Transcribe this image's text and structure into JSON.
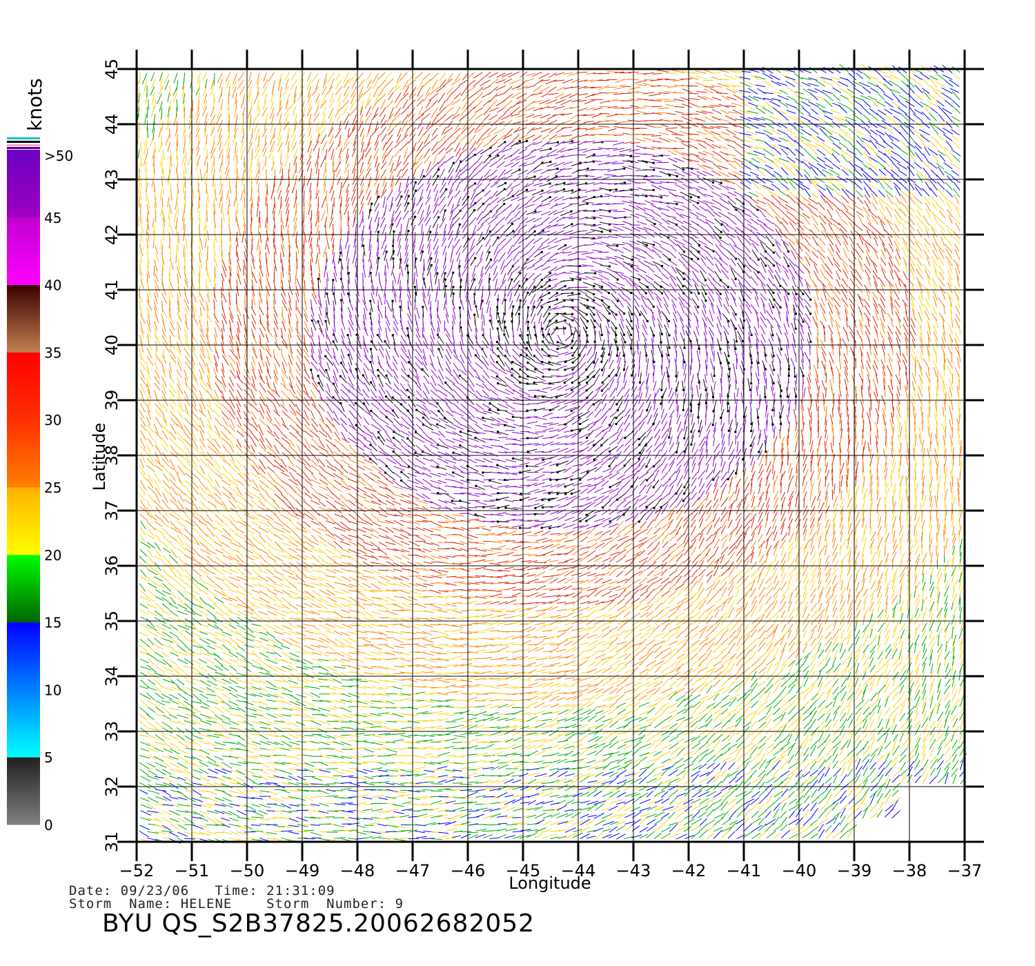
{
  "legend": {
    "unit": "knots",
    "ticks": [
      "0",
      "5",
      "10",
      "15",
      "20",
      "25",
      "30",
      "35",
      "40",
      "45",
      ">50"
    ],
    "bands": [
      {
        "from": 0,
        "to": 5,
        "colors": [
          "#808080",
          "#202020"
        ]
      },
      {
        "from": 5,
        "to": 10,
        "colors": [
          "#00ffff",
          "#0080ff"
        ]
      },
      {
        "from": 10,
        "to": 15,
        "colors": [
          "#0080ff",
          "#0000ff"
        ]
      },
      {
        "from": 15,
        "to": 20,
        "colors": [
          "#006400",
          "#00ff00"
        ]
      },
      {
        "from": 20,
        "to": 25,
        "colors": [
          "#ffff00",
          "#ffb000"
        ]
      },
      {
        "from": 25,
        "to": 30,
        "colors": [
          "#ff8000",
          "#ff3000"
        ]
      },
      {
        "from": 30,
        "to": 35,
        "colors": [
          "#ff3000",
          "#ff0000"
        ]
      },
      {
        "from": 35,
        "to": 40,
        "colors": [
          "#c08050",
          "#3a0000"
        ]
      },
      {
        "from": 40,
        "to": 45,
        "colors": [
          "#ff00ff",
          "#c000d0"
        ]
      },
      {
        "from": 45,
        "to": 50,
        "colors": [
          "#a000c0",
          "#6a00c0"
        ]
      }
    ]
  },
  "map": {
    "lon_range": [
      -52,
      -37
    ],
    "lat_range": [
      31,
      45
    ],
    "lon_ticks": [
      "−52",
      "−51",
      "−50",
      "−49",
      "−48",
      "−47",
      "−46",
      "−45",
      "−44",
      "−43",
      "−42",
      "−41",
      "−40",
      "−39",
      "−38",
      "−37"
    ],
    "lat_ticks": [
      "31",
      "32",
      "33",
      "34",
      "35",
      "36",
      "37",
      "38",
      "39",
      "40",
      "41",
      "42",
      "43",
      "44",
      "45"
    ],
    "xlabel": "Longitude",
    "ylabel": "Latitude",
    "storm_center": {
      "lon": -44.3,
      "lat": 40.2
    },
    "colors": {
      "calm": "#1a1a1a",
      "blue": "#0000ff",
      "green": "#00aa00",
      "yellow": "#ffd000",
      "orange": "#ff8000",
      "red": "#dd2200",
      "purple": "#8a00c8",
      "black": "#000000"
    }
  },
  "footer": {
    "date_line": "Date: 09/23/06   Time: 21:31:09",
    "storm_line": "Storm  Name: HELENE    Storm  Number: 9",
    "file_id": "BYU  QS_S2B37825.20062682052"
  }
}
